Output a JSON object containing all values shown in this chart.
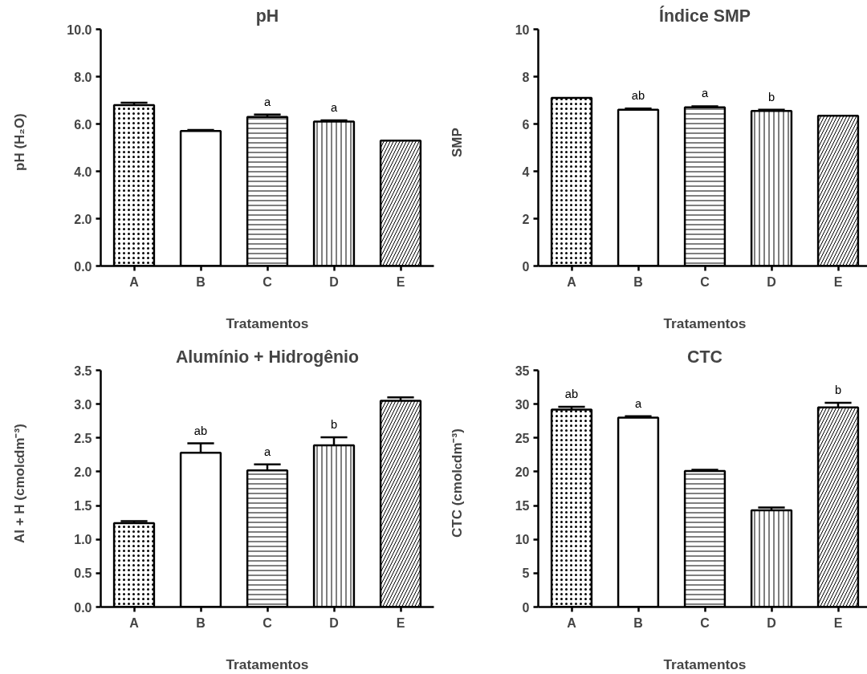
{
  "chart_data": [
    {
      "type": "bar",
      "title": "pH",
      "xlabel": "Tratamentos",
      "ylabel": "pH (H₂O)",
      "categories": [
        "A",
        "B",
        "C",
        "D",
        "E"
      ],
      "values": [
        6.8,
        5.7,
        6.3,
        6.1,
        5.3
      ],
      "errors": [
        [
          6.8,
          6.9
        ],
        [
          5.7,
          5.75
        ],
        [
          6.3,
          6.4
        ],
        [
          6.1,
          6.15
        ],
        null
      ],
      "value_labels": [
        null,
        null,
        "a",
        "a",
        null
      ],
      "color": "#000000",
      "ylim": [
        0,
        10
      ],
      "yticks": [
        {
          "value": 0,
          "label": "0.0"
        },
        {
          "value": 2,
          "label": "2.0"
        },
        {
          "value": 4,
          "label": "4.0"
        },
        {
          "value": 6,
          "label": "6.0"
        },
        {
          "value": 8,
          "label": "8.0"
        },
        {
          "value": 10,
          "label": "10.0"
        }
      ],
      "grid": false
    },
    {
      "type": "bar",
      "title": "Índice SMP",
      "xlabel": "Tratamentos",
      "ylabel": "SMP",
      "categories": [
        "A",
        "B",
        "C",
        "D",
        "E"
      ],
      "values": [
        7.1,
        6.6,
        6.7,
        6.55,
        6.35
      ],
      "errors": [
        null,
        [
          6.6,
          6.65
        ],
        [
          6.7,
          6.75
        ],
        [
          6.55,
          6.6
        ],
        null
      ],
      "value_labels": [
        null,
        "ab",
        "a",
        "b",
        null
      ],
      "color": "#000000",
      "ylim": [
        0,
        10
      ],
      "yticks": [
        0,
        2,
        4,
        6,
        8,
        10
      ],
      "grid": false
    },
    {
      "type": "bar",
      "title": "Alumínio + Hidrogênio",
      "xlabel": "Tratamentos",
      "ylabel": "Al + H (cmol$_{c}$dm⁻³)",
      "categories": [
        "A",
        "B",
        "C",
        "D",
        "E"
      ],
      "values": [
        1.24,
        2.28,
        2.02,
        2.39,
        3.05
      ],
      "errors": [
        [
          1.24,
          1.27
        ],
        [
          2.28,
          2.42
        ],
        [
          2.02,
          2.11
        ],
        [
          2.39,
          2.51
        ],
        [
          3.05,
          3.1
        ]
      ],
      "value_labels": [
        null,
        "ab",
        "a",
        "b",
        null
      ],
      "color": "#000000",
      "ylim": [
        0,
        3.5
      ],
      "yticks": [
        {
          "value": 0,
          "label": "0.0"
        },
        {
          "value": 0.5,
          "label": "0.5"
        },
        {
          "value": 1,
          "label": "1.0"
        },
        {
          "value": 1.5,
          "label": "1.5"
        },
        {
          "value": 2,
          "label": "2.0"
        },
        {
          "value": 2.5,
          "label": "2.5"
        },
        {
          "value": 3,
          "label": "3.0"
        },
        {
          "value": 3.5,
          "label": "3.5"
        }
      ],
      "grid": false
    },
    {
      "type": "bar",
      "title": "CTC",
      "xlabel": "Tratamentos",
      "ylabel": "CTC (cmol$_{c}$dm⁻³)",
      "categories": [
        "A",
        "B",
        "C",
        "D",
        "E"
      ],
      "values": [
        29.2,
        28.0,
        20.1,
        14.3,
        29.5
      ],
      "errors": [
        [
          29.2,
          29.6
        ],
        [
          28.0,
          28.2
        ],
        [
          20.1,
          20.3
        ],
        [
          14.3,
          14.7
        ],
        [
          29.5,
          30.2
        ]
      ],
      "value_labels": [
        "ab",
        "a",
        null,
        null,
        "b"
      ],
      "color": "#000000",
      "ylim": [
        0,
        35
      ],
      "yticks": [
        0,
        5,
        10,
        15,
        20,
        25,
        30,
        35
      ],
      "grid": false
    }
  ]
}
